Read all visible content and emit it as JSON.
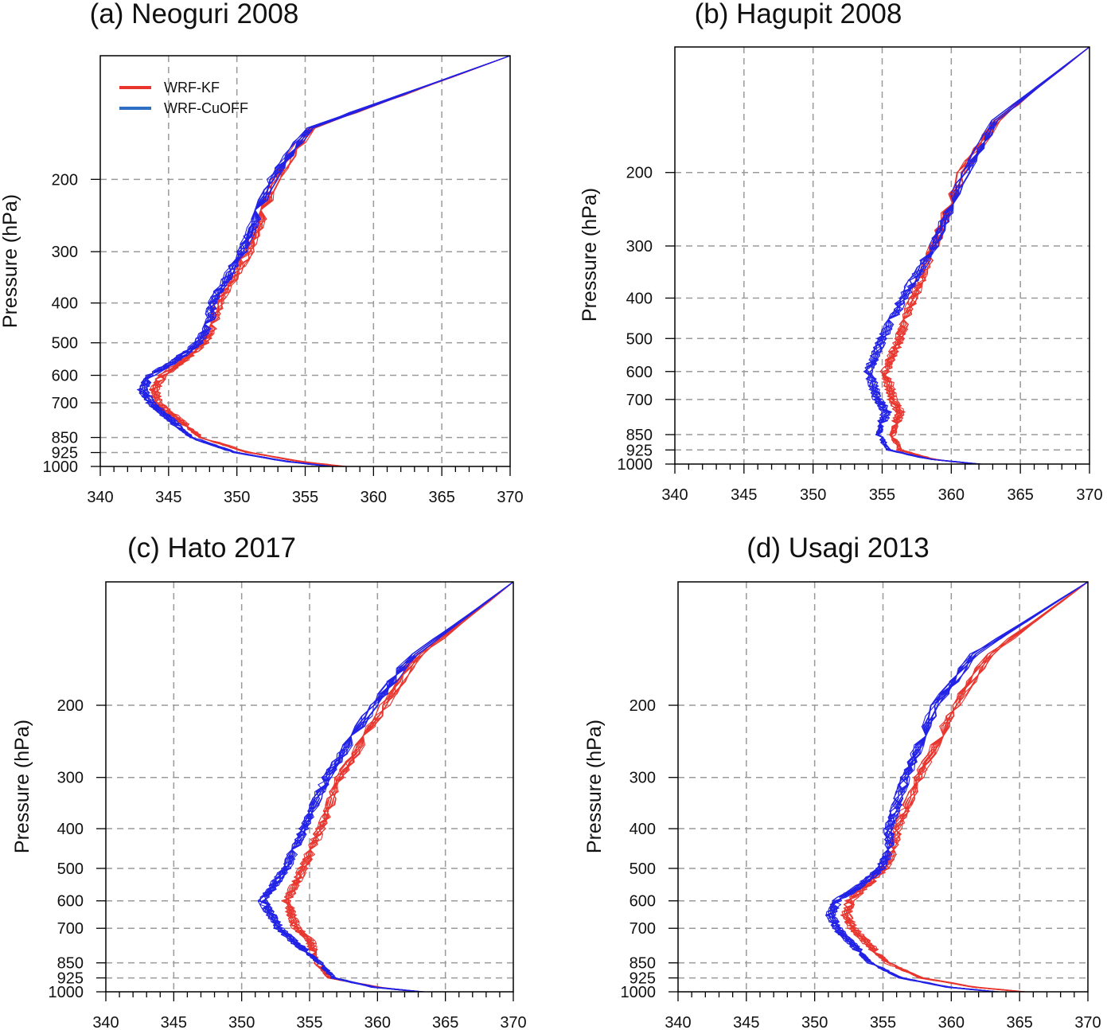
{
  "colors": {
    "kf": "#e8362f",
    "cuoff": "#2222e6",
    "legend_kf": "#e8362f",
    "legend_cuoff": "#2f6fc4"
  },
  "legend": {
    "items": [
      {
        "label": "WRF-KF",
        "color_key": "legend_kf"
      },
      {
        "label": "WRF-CuOFF",
        "color_key": "legend_cuoff"
      }
    ]
  },
  "chart_data": [
    {
      "type": "line",
      "title": "(a) Neoguri 2008",
      "ylabel": "Pressure (hPa)",
      "xlabel": "",
      "xlim": [
        340,
        370
      ],
      "x_ticks": [
        340,
        345,
        350,
        355,
        360,
        365,
        370
      ],
      "y_ticks": [
        200,
        300,
        400,
        500,
        600,
        700,
        850,
        925,
        1000
      ],
      "ylim": [
        100,
        1000
      ],
      "y_inverted": true,
      "grid": true,
      "legend": "top-left",
      "series": [
        {
          "group": "WRF-KF",
          "count": 10,
          "spread": 1.2,
          "profile": [
            [
              1000,
              358.5
            ],
            [
              975,
              355.5
            ],
            [
              925,
              351.5
            ],
            [
              850,
              348.0
            ],
            [
              700,
              344.8
            ],
            [
              650,
              344.6
            ],
            [
              600,
              345.2
            ],
            [
              550,
              346.8
            ],
            [
              500,
              348.2
            ],
            [
              450,
              349.0
            ],
            [
              400,
              349.3
            ],
            [
              300,
              351.5
            ],
            [
              200,
              353.5
            ],
            [
              150,
              356.0
            ],
            [
              100,
              370.0
            ]
          ]
        },
        {
          "group": "WRF-CuOFF",
          "count": 12,
          "spread": 1.4,
          "profile": [
            [
              1000,
              357.5
            ],
            [
              975,
              354.5
            ],
            [
              925,
              350.5
            ],
            [
              850,
              347.3
            ],
            [
              700,
              344.3
            ],
            [
              650,
              343.7
            ],
            [
              600,
              344.3
            ],
            [
              550,
              346.2
            ],
            [
              500,
              347.8
            ],
            [
              450,
              348.6
            ],
            [
              400,
              348.8
            ],
            [
              300,
              351.0
            ],
            [
              200,
              353.2
            ],
            [
              150,
              355.8
            ],
            [
              100,
              370.0
            ]
          ]
        }
      ]
    },
    {
      "type": "line",
      "title": "(b) Hagupit 2008",
      "ylabel": "Pressure (hPa)",
      "xlabel": "",
      "xlim": [
        340,
        370
      ],
      "x_ticks": [
        340,
        345,
        350,
        355,
        360,
        365,
        370
      ],
      "y_ticks": [
        200,
        300,
        400,
        500,
        600,
        700,
        850,
        925,
        1000
      ],
      "ylim": [
        100,
        1000
      ],
      "y_inverted": true,
      "grid": true,
      "series": [
        {
          "group": "WRF-KF",
          "count": 10,
          "spread": 1.0,
          "profile": [
            [
              1000,
              361.5
            ],
            [
              975,
              358.5
            ],
            [
              925,
              356.0
            ],
            [
              850,
              355.5
            ],
            [
              750,
              356.0
            ],
            [
              700,
              355.5
            ],
            [
              600,
              355.0
            ],
            [
              500,
              356.0
            ],
            [
              400,
              357.0
            ],
            [
              300,
              358.5
            ],
            [
              200,
              360.5
            ],
            [
              150,
              363.0
            ],
            [
              100,
              370.0
            ]
          ]
        },
        {
          "group": "WRF-CuOFF",
          "count": 10,
          "spread": 1.5,
          "profile": [
            [
              1000,
              361.5
            ],
            [
              975,
              358.0
            ],
            [
              925,
              355.0
            ],
            [
              850,
              354.2
            ],
            [
              750,
              354.8
            ],
            [
              700,
              354.2
            ],
            [
              600,
              353.5
            ],
            [
              500,
              354.5
            ],
            [
              400,
              356.0
            ],
            [
              300,
              358.2
            ],
            [
              200,
              360.5
            ],
            [
              150,
              362.8
            ],
            [
              100,
              370.0
            ]
          ]
        }
      ]
    },
    {
      "type": "line",
      "title": "(c) Hato 2017",
      "ylabel": "Pressure (hPa)",
      "xlabel": "",
      "xlim": [
        340,
        370
      ],
      "x_ticks": [
        340,
        345,
        350,
        355,
        360,
        365,
        370
      ],
      "y_ticks": [
        200,
        300,
        400,
        500,
        600,
        700,
        850,
        925,
        1000
      ],
      "ylim": [
        100,
        1000
      ],
      "y_inverted": true,
      "grid": true,
      "series": [
        {
          "group": "WRF-KF",
          "count": 10,
          "spread": 1.0,
          "profile": [
            [
              1000,
              364.0
            ],
            [
              975,
              361.0
            ],
            [
              925,
              357.5
            ],
            [
              850,
              356.5
            ],
            [
              750,
              356.0
            ],
            [
              700,
              355.0
            ],
            [
              600,
              354.3
            ],
            [
              500,
              355.5
            ],
            [
              400,
              356.8
            ],
            [
              300,
              358.2
            ],
            [
              200,
              361.5
            ],
            [
              150,
              364.0
            ],
            [
              100,
              370.0
            ]
          ]
        },
        {
          "group": "WRF-CuOFF",
          "count": 12,
          "spread": 1.4,
          "profile": [
            [
              1000,
              364.5
            ],
            [
              975,
              361.0
            ],
            [
              925,
              358.0
            ],
            [
              850,
              357.0
            ],
            [
              750,
              355.0
            ],
            [
              700,
              354.0
            ],
            [
              600,
              352.8
            ],
            [
              500,
              354.5
            ],
            [
              400,
              355.8
            ],
            [
              300,
              357.5
            ],
            [
              200,
              361.0
            ],
            [
              150,
              363.8
            ],
            [
              100,
              370.0
            ]
          ]
        }
      ]
    },
    {
      "type": "line",
      "title": "(d) Usagi 2013",
      "ylabel": "Pressure (hPa)",
      "xlabel": "",
      "xlim": [
        340,
        370
      ],
      "x_ticks": [
        340,
        345,
        350,
        355,
        360,
        365,
        370
      ],
      "y_ticks": [
        200,
        300,
        400,
        500,
        600,
        700,
        850,
        925,
        1000
      ],
      "ylim": [
        100,
        1000
      ],
      "y_inverted": true,
      "grid": true,
      "series": [
        {
          "group": "WRF-KF",
          "count": 10,
          "spread": 1.0,
          "profile": [
            [
              1000,
              365.5
            ],
            [
              975,
              362.0
            ],
            [
              925,
              358.0
            ],
            [
              850,
              355.5
            ],
            [
              700,
              353.0
            ],
            [
              650,
              352.5
            ],
            [
              600,
              352.8
            ],
            [
              550,
              354.0
            ],
            [
              500,
              355.3
            ],
            [
              450,
              356.0
            ],
            [
              400,
              356.2
            ],
            [
              300,
              357.8
            ],
            [
              200,
              360.5
            ],
            [
              150,
              363.0
            ],
            [
              100,
              370.0
            ]
          ]
        },
        {
          "group": "WRF-CuOFF",
          "count": 12,
          "spread": 1.3,
          "profile": [
            [
              1000,
              363.5
            ],
            [
              975,
              360.0
            ],
            [
              925,
              356.5
            ],
            [
              850,
              354.2
            ],
            [
              700,
              351.8
            ],
            [
              650,
              351.3
            ],
            [
              600,
              351.8
            ],
            [
              550,
              353.5
            ],
            [
              500,
              355.0
            ],
            [
              450,
              355.6
            ],
            [
              400,
              355.6
            ],
            [
              300,
              356.8
            ],
            [
              200,
              359.0
            ],
            [
              150,
              361.8
            ],
            [
              100,
              370.0
            ]
          ]
        }
      ]
    }
  ]
}
